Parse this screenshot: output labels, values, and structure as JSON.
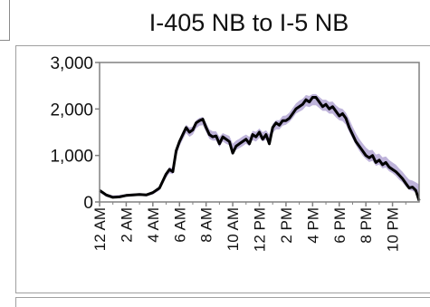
{
  "chart_data": {
    "type": "line",
    "title": "I-405 NB to I-5 NB",
    "ylim": [
      0,
      3000
    ],
    "yticks": [
      "3,000",
      "2,000",
      "1,000",
      "0"
    ],
    "ytick_values": [
      3000,
      2000,
      1000,
      0
    ],
    "xticks": [
      "12 AM",
      "2 AM",
      "4 AM",
      "6 AM",
      "8 AM",
      "10 AM",
      "12 PM",
      "2 PM",
      "4 PM",
      "6 PM",
      "8 PM",
      "10 PM"
    ],
    "xtick_hours": [
      0,
      2,
      4,
      6,
      8,
      10,
      12,
      14,
      16,
      18,
      20,
      22
    ],
    "xlim_hours": [
      0,
      24
    ],
    "colors": {
      "line": "#000000",
      "band": "#b3a6d4"
    },
    "series": [
      {
        "x": [
          0,
          0.25,
          0.5,
          1,
          1.5,
          2,
          2.5,
          3,
          3.5,
          4,
          4.5,
          5,
          5.25,
          5.5,
          5.75,
          6,
          6.25,
          6.5,
          6.75,
          7,
          7.25,
          7.5,
          7.75,
          8,
          8.25,
          8.5,
          8.75,
          9,
          9.25,
          9.5,
          9.75,
          10,
          10.25,
          10.5,
          10.75,
          11,
          11.25,
          11.5,
          11.75,
          12,
          12.25,
          12.5,
          12.75,
          13,
          13.25,
          13.5,
          13.75,
          14,
          14.25,
          14.5,
          14.75,
          15,
          15.25,
          15.5,
          15.75,
          16,
          16.25,
          16.5,
          16.75,
          17,
          17.25,
          17.5,
          17.75,
          18,
          18.25,
          18.5,
          18.75,
          19,
          19.25,
          19.5,
          19.75,
          20,
          20.25,
          20.5,
          20.75,
          21,
          21.25,
          21.5,
          21.75,
          22,
          22.25,
          22.5,
          22.75,
          23,
          23.25,
          23.5,
          23.75,
          24
        ],
        "values": [
          250,
          200,
          150,
          100,
          110,
          140,
          150,
          160,
          150,
          200,
          300,
          600,
          700,
          650,
          1100,
          1300,
          1450,
          1600,
          1500,
          1550,
          1700,
          1750,
          1780,
          1600,
          1450,
          1400,
          1420,
          1250,
          1400,
          1350,
          1300,
          1050,
          1200,
          1250,
          1300,
          1350,
          1250,
          1450,
          1400,
          1500,
          1350,
          1450,
          1250,
          1600,
          1700,
          1650,
          1750,
          1750,
          1800,
          1900,
          2000,
          2050,
          2100,
          2200,
          2150,
          2250,
          2250,
          2150,
          2050,
          2100,
          2000,
          2050,
          1950,
          1850,
          1900,
          1800,
          1600,
          1450,
          1300,
          1200,
          1100,
          1000,
          950,
          1000,
          850,
          900,
          800,
          850,
          750,
          700,
          650,
          580,
          500,
          400,
          300,
          320,
          250,
          30
        ]
      }
    ],
    "band": {
      "upper": [
        260,
        220,
        180,
        140,
        150,
        170,
        180,
        190,
        180,
        230,
        340,
        640,
        750,
        720,
        1150,
        1360,
        1520,
        1660,
        1600,
        1620,
        1760,
        1810,
        1830,
        1700,
        1560,
        1520,
        1520,
        1400,
        1480,
        1450,
        1420,
        1250,
        1320,
        1360,
        1410,
        1450,
        1400,
        1530,
        1510,
        1580,
        1500,
        1540,
        1450,
        1680,
        1760,
        1760,
        1850,
        1860,
        1920,
        2020,
        2120,
        2180,
        2220,
        2300,
        2280,
        2320,
        2320,
        2260,
        2200,
        2200,
        2150,
        2160,
        2080,
        2020,
        2000,
        1920,
        1780,
        1620,
        1480,
        1360,
        1260,
        1170,
        1110,
        1120,
        1020,
        1040,
        960,
        980,
        900,
        850,
        800,
        720,
        650,
        560,
        480,
        460,
        420,
        380
      ],
      "lower": [
        200,
        160,
        110,
        80,
        90,
        110,
        120,
        130,
        120,
        160,
        250,
        520,
        620,
        600,
        980,
        1200,
        1340,
        1480,
        1400,
        1450,
        1580,
        1640,
        1650,
        1500,
        1360,
        1320,
        1320,
        1180,
        1300,
        1250,
        1220,
        1050,
        1120,
        1160,
        1200,
        1250,
        1200,
        1330,
        1300,
        1380,
        1300,
        1340,
        1250,
        1480,
        1560,
        1560,
        1640,
        1660,
        1720,
        1800,
        1900,
        1940,
        1980,
        2060,
        2040,
        2080,
        2080,
        2020,
        1960,
        1960,
        1900,
        1900,
        1820,
        1760,
        1740,
        1660,
        1500,
        1360,
        1220,
        1100,
        1000,
        920,
        860,
        880,
        780,
        800,
        720,
        740,
        660,
        620,
        560,
        480,
        420,
        330,
        260,
        240,
        200,
        150
      ]
    }
  }
}
